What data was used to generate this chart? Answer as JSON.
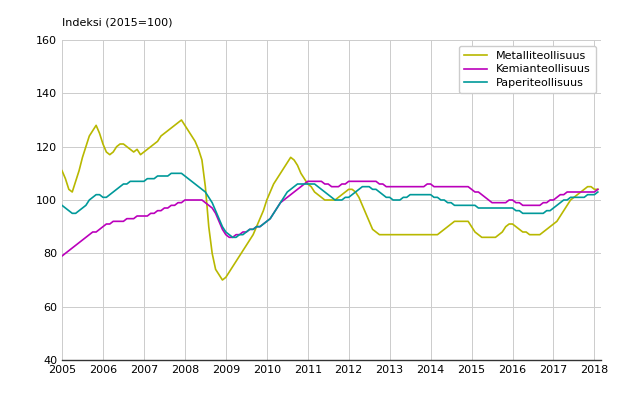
{
  "ylabel": "Indeksi (2015=100)",
  "ylim": [
    40,
    160
  ],
  "yticks": [
    40,
    60,
    80,
    100,
    120,
    140,
    160
  ],
  "xlim_start": 2005.0,
  "xlim_end": 2018.17,
  "xticks": [
    2005,
    2006,
    2007,
    2008,
    2009,
    2010,
    2011,
    2012,
    2013,
    2014,
    2015,
    2016,
    2017,
    2018
  ],
  "colors": {
    "metalli": "#b8b800",
    "kemia": "#bb00bb",
    "paperi": "#00999a"
  },
  "legend_labels": [
    "Metalliteollisuus",
    "Kemianteollisuus",
    "Paperiteollisuus"
  ],
  "grid_color": "#cccccc",
  "background_color": "#ffffff",
  "metalli": [
    111,
    108,
    104,
    103,
    107,
    111,
    116,
    120,
    124,
    126,
    128,
    125,
    121,
    118,
    117,
    118,
    120,
    121,
    121,
    120,
    119,
    118,
    119,
    117,
    118,
    119,
    120,
    121,
    122,
    124,
    125,
    126,
    127,
    128,
    129,
    130,
    128,
    126,
    124,
    122,
    119,
    115,
    105,
    90,
    80,
    74,
    72,
    70,
    71,
    73,
    75,
    77,
    79,
    81,
    83,
    85,
    87,
    90,
    93,
    96,
    100,
    103,
    106,
    108,
    110,
    112,
    114,
    116,
    115,
    113,
    110,
    108,
    106,
    105,
    103,
    102,
    101,
    100,
    100,
    100,
    100,
    101,
    102,
    103,
    104,
    104,
    103,
    101,
    98,
    95,
    92,
    89,
    88,
    87,
    87,
    87,
    87,
    87,
    87,
    87,
    87,
    87,
    87,
    87,
    87,
    87,
    87,
    87,
    87,
    87,
    87,
    88,
    89,
    90,
    91,
    92,
    92,
    92,
    92,
    92,
    90,
    88,
    87,
    86,
    86,
    86,
    86,
    86,
    87,
    88,
    90,
    91,
    91,
    90,
    89,
    88,
    88,
    87,
    87,
    87,
    87,
    88,
    89,
    90,
    91,
    92,
    94,
    96,
    98,
    100,
    101,
    102,
    103,
    104,
    105,
    105,
    104,
    104
  ],
  "kemia": [
    79,
    80,
    81,
    82,
    83,
    84,
    85,
    86,
    87,
    88,
    88,
    89,
    90,
    91,
    91,
    92,
    92,
    92,
    92,
    93,
    93,
    93,
    94,
    94,
    94,
    94,
    95,
    95,
    96,
    96,
    97,
    97,
    98,
    98,
    99,
    99,
    100,
    100,
    100,
    100,
    100,
    100,
    99,
    98,
    97,
    95,
    92,
    89,
    87,
    86,
    86,
    87,
    87,
    88,
    88,
    89,
    89,
    90,
    90,
    91,
    92,
    93,
    95,
    97,
    99,
    100,
    101,
    102,
    103,
    104,
    105,
    106,
    107,
    107,
    107,
    107,
    107,
    106,
    106,
    105,
    105,
    105,
    106,
    106,
    107,
    107,
    107,
    107,
    107,
    107,
    107,
    107,
    107,
    106,
    106,
    105,
    105,
    105,
    105,
    105,
    105,
    105,
    105,
    105,
    105,
    105,
    105,
    106,
    106,
    105,
    105,
    105,
    105,
    105,
    105,
    105,
    105,
    105,
    105,
    105,
    104,
    103,
    103,
    102,
    101,
    100,
    99,
    99,
    99,
    99,
    99,
    100,
    100,
    99,
    99,
    98,
    98,
    98,
    98,
    98,
    98,
    99,
    99,
    100,
    100,
    101,
    102,
    102,
    103,
    103,
    103,
    103,
    103,
    103,
    103,
    103,
    103,
    104
  ],
  "paperi": [
    98,
    97,
    96,
    95,
    95,
    96,
    97,
    98,
    100,
    101,
    102,
    102,
    101,
    101,
    102,
    103,
    104,
    105,
    106,
    106,
    107,
    107,
    107,
    107,
    107,
    108,
    108,
    108,
    109,
    109,
    109,
    109,
    110,
    110,
    110,
    110,
    109,
    108,
    107,
    106,
    105,
    104,
    103,
    101,
    99,
    96,
    93,
    90,
    88,
    87,
    86,
    86,
    87,
    87,
    88,
    89,
    89,
    90,
    90,
    91,
    92,
    93,
    95,
    97,
    99,
    101,
    103,
    104,
    105,
    106,
    106,
    106,
    106,
    106,
    106,
    105,
    104,
    103,
    102,
    101,
    100,
    100,
    100,
    101,
    101,
    102,
    103,
    104,
    105,
    105,
    105,
    104,
    104,
    103,
    102,
    101,
    101,
    100,
    100,
    100,
    101,
    101,
    102,
    102,
    102,
    102,
    102,
    102,
    102,
    101,
    101,
    100,
    100,
    99,
    99,
    98,
    98,
    98,
    98,
    98,
    98,
    98,
    97,
    97,
    97,
    97,
    97,
    97,
    97,
    97,
    97,
    97,
    97,
    96,
    96,
    95,
    95,
    95,
    95,
    95,
    95,
    95,
    96,
    96,
    97,
    98,
    99,
    100,
    100,
    101,
    101,
    101,
    101,
    101,
    102,
    102,
    102,
    103
  ]
}
